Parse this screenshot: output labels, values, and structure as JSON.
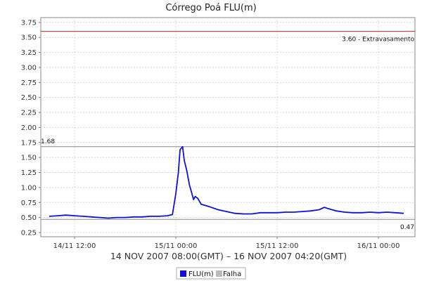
{
  "chart_data": {
    "type": "line",
    "title": "Córrego Poá FLU(m)",
    "xlabel": "14 NOV 2007 08:00(GMT) – 16 NOV 2007 04:20(GMT)",
    "x_range_hours": [
      0,
      44.33
    ],
    "ylim": [
      0.18,
      3.83
    ],
    "yticks": [
      0.25,
      0.5,
      0.75,
      1.0,
      1.25,
      1.5,
      1.75,
      2.0,
      2.25,
      2.5,
      2.75,
      3.0,
      3.25,
      3.5,
      3.75
    ],
    "ytick_labels": [
      "0.25",
      "0.50",
      "0.75",
      "1.00",
      "1.25",
      "1.50",
      "1.75",
      "2.00",
      "2.25",
      "2.50",
      "2.75",
      "3.00",
      "3.25",
      "3.50",
      "3.75"
    ],
    "xticks": [
      {
        "hours": 4,
        "label": "14/11 12:00"
      },
      {
        "hours": 16,
        "label": "15/11 00:00"
      },
      {
        "hours": 28,
        "label": "15/11 12:00"
      },
      {
        "hours": 40,
        "label": "16/11 00:00"
      }
    ],
    "grid": true,
    "legend_position": "bottom",
    "reference_lines": [
      {
        "value": 3.6,
        "label": "3.60 - Extravasamento",
        "color": "#cc2222"
      },
      {
        "value": 1.68,
        "label": "1.68",
        "color": "#888888"
      },
      {
        "value": 0.47,
        "label": "0.47",
        "color": "#888888"
      }
    ],
    "series": [
      {
        "name": "FLU(m)",
        "color": "#1010dd",
        "points": [
          [
            1,
            0.52
          ],
          [
            2,
            0.53
          ],
          [
            3,
            0.54
          ],
          [
            4,
            0.53
          ],
          [
            5,
            0.52
          ],
          [
            6,
            0.51
          ],
          [
            7,
            0.5
          ],
          [
            8,
            0.49
          ],
          [
            9,
            0.5
          ],
          [
            10,
            0.5
          ],
          [
            11,
            0.51
          ],
          [
            12,
            0.51
          ],
          [
            13,
            0.52
          ],
          [
            14,
            0.52
          ],
          [
            15,
            0.53
          ],
          [
            15.6,
            0.55
          ],
          [
            16,
            0.9
          ],
          [
            16.3,
            1.25
          ],
          [
            16.5,
            1.63
          ],
          [
            16.8,
            1.68
          ],
          [
            17.0,
            1.45
          ],
          [
            17.3,
            1.28
          ],
          [
            17.6,
            1.05
          ],
          [
            17.9,
            0.9
          ],
          [
            18.1,
            0.8
          ],
          [
            18.3,
            0.85
          ],
          [
            18.6,
            0.82
          ],
          [
            19,
            0.72
          ],
          [
            20,
            0.68
          ],
          [
            21,
            0.63
          ],
          [
            22,
            0.6
          ],
          [
            23,
            0.57
          ],
          [
            24,
            0.56
          ],
          [
            25,
            0.56
          ],
          [
            26,
            0.58
          ],
          [
            27,
            0.58
          ],
          [
            28,
            0.58
          ],
          [
            29,
            0.59
          ],
          [
            30,
            0.59
          ],
          [
            31,
            0.6
          ],
          [
            32,
            0.61
          ],
          [
            33,
            0.63
          ],
          [
            33.6,
            0.67
          ],
          [
            34,
            0.65
          ],
          [
            35,
            0.61
          ],
          [
            36,
            0.59
          ],
          [
            37,
            0.58
          ],
          [
            38,
            0.58
          ],
          [
            39,
            0.59
          ],
          [
            40,
            0.58
          ],
          [
            41,
            0.59
          ],
          [
            42,
            0.58
          ],
          [
            43,
            0.57
          ]
        ]
      },
      {
        "name": "Falha",
        "color": "#bbbbbb",
        "points": []
      }
    ]
  }
}
